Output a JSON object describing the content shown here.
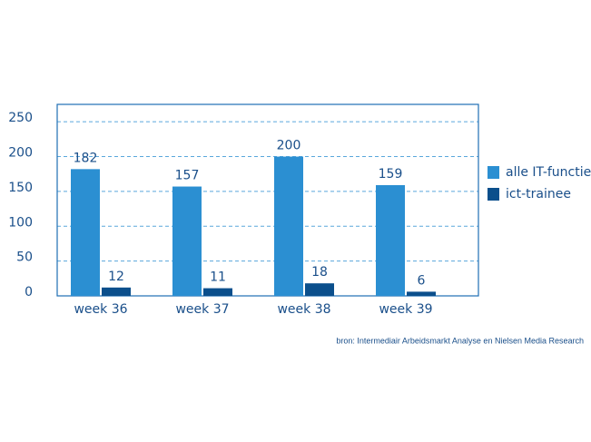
{
  "chart_data": {
    "type": "bar",
    "categories": [
      "week 36",
      "week 37",
      "week 38",
      "week 39"
    ],
    "series": [
      {
        "name": "alle IT-functies",
        "color": "#2b8fd2",
        "values": [
          182,
          157,
          200,
          159
        ]
      },
      {
        "name": "ict-trainee",
        "color": "#0b4f8c",
        "values": [
          12,
          11,
          18,
          6
        ]
      }
    ],
    "ylim": [
      0,
      275
    ],
    "yticks": [
      0,
      50,
      100,
      150,
      200,
      250
    ],
    "grid": true,
    "source": "bron: Intermediair Arbeidsmarkt Analyse en Nielsen Media Research"
  }
}
